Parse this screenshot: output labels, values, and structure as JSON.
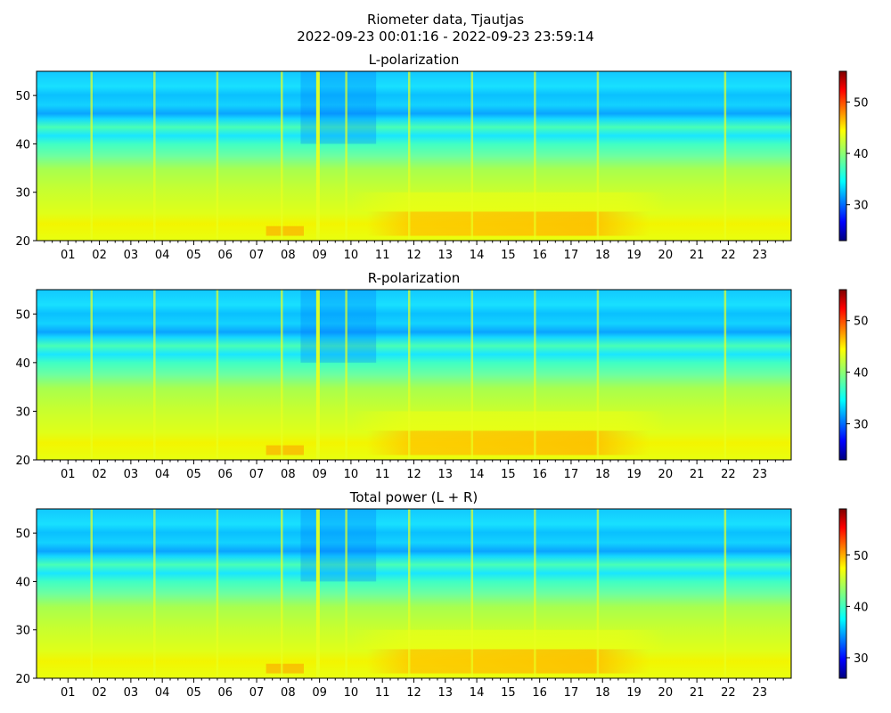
{
  "figure": {
    "title_line1": "Riometer data, Tjautjas",
    "title_line2": "2022-09-23 00:01:16 - 2022-09-23 23:59:14"
  },
  "chart_data": [
    {
      "type": "heatmap",
      "title": "L-polarization",
      "xlabel": "",
      "ylabel": "",
      "x_tick_labels": [
        "01",
        "02",
        "03",
        "04",
        "05",
        "06",
        "07",
        "08",
        "09",
        "10",
        "11",
        "12",
        "13",
        "14",
        "15",
        "16",
        "17",
        "18",
        "19",
        "20",
        "21",
        "22",
        "23"
      ],
      "x_range_hours": [
        0,
        24
      ],
      "y_ticks": [
        20,
        30,
        40,
        50
      ],
      "ylim": [
        20,
        55
      ],
      "colorbar": {
        "range": [
          23,
          56
        ],
        "ticks": [
          30,
          40,
          50
        ],
        "colormap": "jet"
      },
      "vertical_bands_hours": [
        1.75,
        3.75,
        5.75,
        7.8,
        8.95,
        9.85,
        11.85,
        13.85,
        15.85,
        17.85,
        21.9
      ],
      "hot_region_hours": [
        10.5,
        19.5
      ]
    },
    {
      "type": "heatmap",
      "title": "R-polarization",
      "xlabel": "",
      "ylabel": "",
      "x_tick_labels": [
        "01",
        "02",
        "03",
        "04",
        "05",
        "06",
        "07",
        "08",
        "09",
        "10",
        "11",
        "12",
        "13",
        "14",
        "15",
        "16",
        "17",
        "18",
        "19",
        "20",
        "21",
        "22",
        "23"
      ],
      "x_range_hours": [
        0,
        24
      ],
      "y_ticks": [
        20,
        30,
        40,
        50
      ],
      "ylim": [
        20,
        55
      ],
      "colorbar": {
        "range": [
          23,
          56
        ],
        "ticks": [
          30,
          40,
          50
        ],
        "colormap": "jet"
      },
      "vertical_bands_hours": [
        1.75,
        3.75,
        5.75,
        7.8,
        8.95,
        9.85,
        11.85,
        13.85,
        15.85,
        17.85,
        21.9
      ],
      "hot_region_hours": [
        10.5,
        19.5
      ]
    },
    {
      "type": "heatmap",
      "title": "Total power (L + R)",
      "xlabel": "",
      "ylabel": "",
      "x_tick_labels": [
        "01",
        "02",
        "03",
        "04",
        "05",
        "06",
        "07",
        "08",
        "09",
        "10",
        "11",
        "12",
        "13",
        "14",
        "15",
        "16",
        "17",
        "18",
        "19",
        "20",
        "21",
        "22",
        "23"
      ],
      "x_range_hours": [
        0,
        24
      ],
      "y_ticks": [
        20,
        30,
        40,
        50
      ],
      "ylim": [
        20,
        55
      ],
      "colorbar": {
        "range": [
          26,
          59
        ],
        "ticks": [
          30,
          40,
          50
        ],
        "colormap": "jet"
      },
      "vertical_bands_hours": [
        1.75,
        3.75,
        5.75,
        7.8,
        8.95,
        9.85,
        11.85,
        13.85,
        15.85,
        17.85,
        21.9
      ],
      "hot_region_hours": [
        10.5,
        19.5
      ]
    }
  ]
}
